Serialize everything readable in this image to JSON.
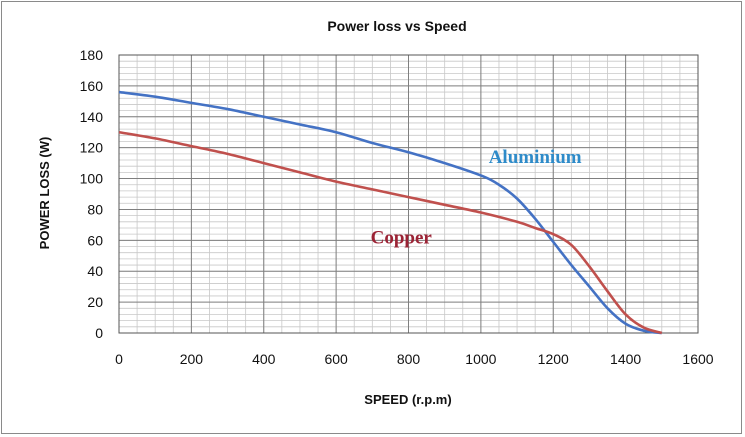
{
  "chart_data": {
    "type": "line",
    "title": "Power loss vs Speed",
    "xlabel": "SPEED (r.p.m)",
    "ylabel": "POWER LOSS (W)",
    "xlim": [
      0,
      1600
    ],
    "ylim": [
      0,
      180
    ],
    "x_ticks": [
      0,
      200,
      400,
      600,
      800,
      1000,
      1200,
      1400,
      1600
    ],
    "y_ticks": [
      0,
      20,
      40,
      60,
      80,
      100,
      120,
      140,
      160,
      180
    ],
    "grid": true,
    "series": [
      {
        "name": "Aluminium",
        "color": "#4472c4",
        "label_color": "#2e8bc9",
        "points": [
          [
            0,
            156
          ],
          [
            100,
            153
          ],
          [
            200,
            149
          ],
          [
            300,
            145
          ],
          [
            400,
            140
          ],
          [
            500,
            135
          ],
          [
            600,
            130
          ],
          [
            700,
            123
          ],
          [
            800,
            117
          ],
          [
            900,
            110
          ],
          [
            1000,
            102
          ],
          [
            1050,
            96
          ],
          [
            1100,
            87
          ],
          [
            1150,
            74
          ],
          [
            1200,
            59
          ],
          [
            1250,
            44
          ],
          [
            1300,
            30
          ],
          [
            1350,
            16
          ],
          [
            1400,
            6
          ],
          [
            1450,
            1.5
          ],
          [
            1500,
            0
          ]
        ]
      },
      {
        "name": "Copper",
        "color": "#c0504d",
        "label_color": "#9b2335",
        "points": [
          [
            0,
            130
          ],
          [
            100,
            126
          ],
          [
            200,
            121
          ],
          [
            300,
            116
          ],
          [
            400,
            110
          ],
          [
            500,
            104
          ],
          [
            600,
            98
          ],
          [
            700,
            93
          ],
          [
            800,
            88
          ],
          [
            900,
            83
          ],
          [
            1000,
            78
          ],
          [
            1100,
            72
          ],
          [
            1150,
            68
          ],
          [
            1200,
            64
          ],
          [
            1250,
            57
          ],
          [
            1300,
            43
          ],
          [
            1350,
            27
          ],
          [
            1400,
            12
          ],
          [
            1450,
            3.5
          ],
          [
            1500,
            0
          ]
        ]
      }
    ]
  }
}
